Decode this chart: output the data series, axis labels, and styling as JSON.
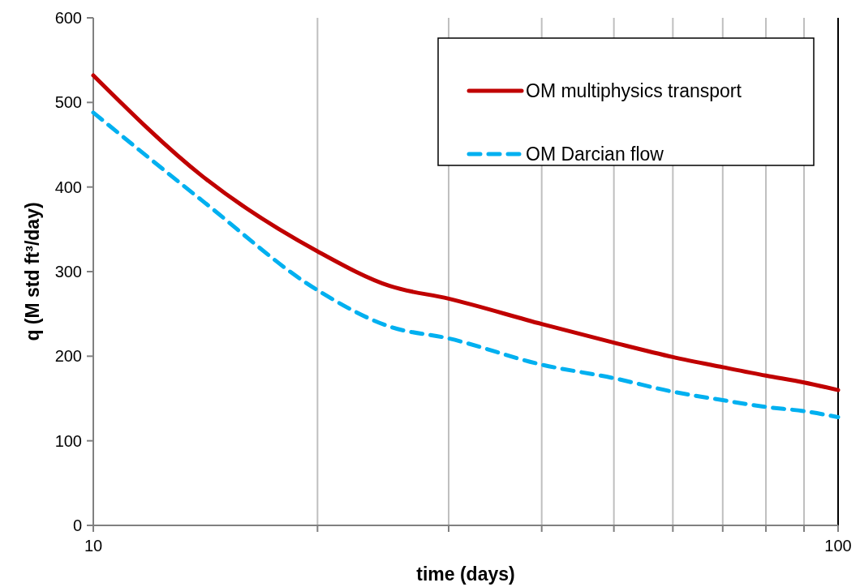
{
  "chart_data": {
    "type": "line",
    "xlabel": "time (days)",
    "ylabel": "q (M std ft³/day)",
    "log": "x",
    "xlim": [
      10,
      100
    ],
    "xticks": [
      10,
      {
        "value": 20,
        "label": null
      },
      {
        "value": 30,
        "label": null
      },
      {
        "value": 40,
        "label": null
      },
      {
        "value": 50,
        "label": null
      },
      {
        "value": 60,
        "label": null
      },
      {
        "value": 70,
        "label": null
      },
      {
        "value": 80,
        "label": null
      },
      {
        "value": 90,
        "label": null
      },
      100
    ],
    "ylim": [
      0,
      600
    ],
    "yticks": [
      0,
      100,
      200,
      300,
      400,
      500,
      600
    ],
    "grid": "x",
    "legend": "top right",
    "series": [
      {
        "name": "OM multiphysics transport",
        "color": "#c00000",
        "line_style": "solid",
        "x": [
          10,
          14,
          20,
          25,
          30,
          40,
          50,
          60,
          70,
          80,
          90,
          100
        ],
        "values": [
          532,
          413,
          324,
          283,
          268,
          238,
          216,
          199,
          187,
          177,
          169,
          160
        ]
      },
      {
        "name": "OM Darcian flow",
        "color": "#00b0f0",
        "line_style": "dashed",
        "x": [
          10,
          14,
          20,
          25,
          30,
          40,
          50,
          60,
          70,
          80,
          90,
          100
        ],
        "values": [
          488,
          384,
          278,
          235,
          221,
          190,
          174,
          158,
          148,
          140,
          135,
          128
        ]
      }
    ]
  }
}
